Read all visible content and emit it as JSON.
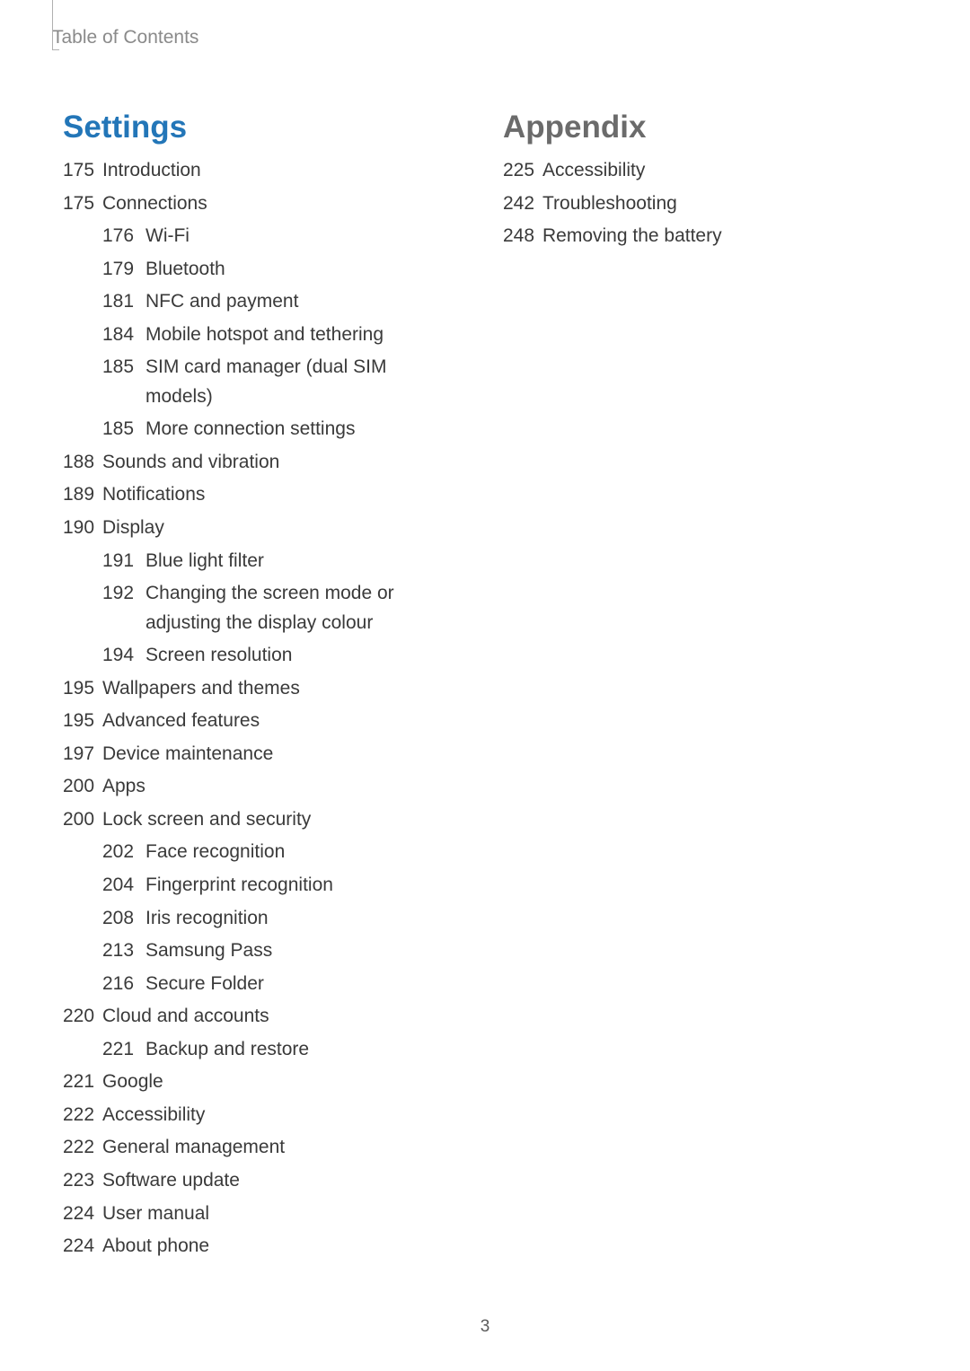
{
  "running_head": "Table of Contents",
  "page_number": "3",
  "colors": {
    "settings_heading": "#2376b8",
    "appendix_heading": "#6b6b6b",
    "body_text": "#3a3a3a",
    "running_head": "#8a8a8a",
    "background": "#ffffff"
  },
  "typography": {
    "heading_fontsize_pt": 26,
    "body_fontsize_pt": 16,
    "running_head_fontsize_pt": 16
  },
  "sections": [
    {
      "title": "Settings",
      "title_class": "settings-title",
      "items": [
        {
          "page": "175",
          "label": "Introduction"
        },
        {
          "page": "175",
          "label": "Connections",
          "children": [
            {
              "page": "176",
              "label": "Wi-Fi"
            },
            {
              "page": "179",
              "label": "Bluetooth"
            },
            {
              "page": "181",
              "label": "NFC and payment"
            },
            {
              "page": "184",
              "label": "Mobile hotspot and tethering"
            },
            {
              "page": "185",
              "label": "SIM card manager (dual SIM models)"
            },
            {
              "page": "185",
              "label": "More connection settings"
            }
          ]
        },
        {
          "page": "188",
          "label": "Sounds and vibration"
        },
        {
          "page": "189",
          "label": "Notifications"
        },
        {
          "page": "190",
          "label": "Display",
          "children": [
            {
              "page": "191",
              "label": "Blue light filter"
            },
            {
              "page": "192",
              "label": "Changing the screen mode or adjusting the display colour"
            },
            {
              "page": "194",
              "label": "Screen resolution"
            }
          ]
        },
        {
          "page": "195",
          "label": "Wallpapers and themes"
        },
        {
          "page": "195",
          "label": "Advanced features"
        },
        {
          "page": "197",
          "label": "Device maintenance"
        },
        {
          "page": "200",
          "label": "Apps"
        },
        {
          "page": "200",
          "label": "Lock screen and security",
          "children": [
            {
              "page": "202",
              "label": "Face recognition"
            },
            {
              "page": "204",
              "label": "Fingerprint recognition"
            },
            {
              "page": "208",
              "label": "Iris recognition"
            },
            {
              "page": "213",
              "label": "Samsung Pass"
            },
            {
              "page": "216",
              "label": "Secure Folder"
            }
          ]
        },
        {
          "page": "220",
          "label": "Cloud and accounts",
          "children": [
            {
              "page": "221",
              "label": "Backup and restore"
            }
          ]
        },
        {
          "page": "221",
          "label": "Google"
        },
        {
          "page": "222",
          "label": "Accessibility"
        },
        {
          "page": "222",
          "label": "General management"
        },
        {
          "page": "223",
          "label": "Software update"
        },
        {
          "page": "224",
          "label": "User manual"
        },
        {
          "page": "224",
          "label": "About phone"
        }
      ]
    },
    {
      "title": "Appendix",
      "title_class": "appendix-title",
      "items": [
        {
          "page": "225",
          "label": "Accessibility"
        },
        {
          "page": "242",
          "label": "Troubleshooting"
        },
        {
          "page": "248",
          "label": "Removing the battery"
        }
      ]
    }
  ]
}
